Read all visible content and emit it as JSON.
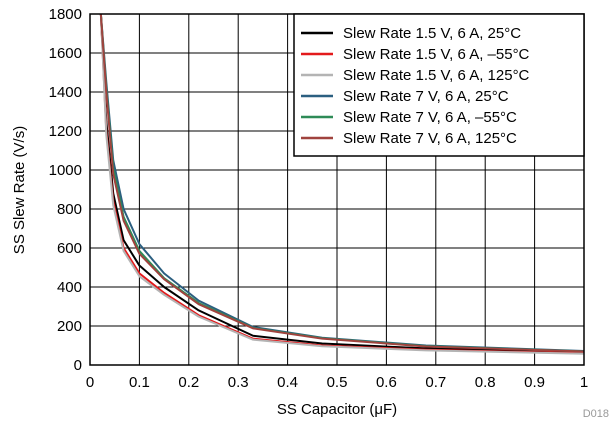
{
  "chart_data": {
    "type": "line",
    "xlabel": "SS Capacitor (μF)",
    "ylabel": "SS Slew Rate (V/s)",
    "xlim": [
      0,
      1
    ],
    "ylim": [
      0,
      1800
    ],
    "x_ticks": [
      "0",
      "0.1",
      "0.2",
      "0.3",
      "0.4",
      "0.5",
      "0.6",
      "0.7",
      "0.8",
      "0.9",
      "1"
    ],
    "y_ticks": [
      "0",
      "200",
      "400",
      "600",
      "800",
      "1000",
      "1200",
      "1400",
      "1600",
      "1800"
    ],
    "grid": true,
    "legend_position": "top-right",
    "footnote": "D018",
    "series": [
      {
        "name": "Slew Rate 1.5 V, 6 A, 25°C",
        "color": "#000000",
        "x": [
          0.022,
          0.033,
          0.047,
          0.068,
          0.1,
          0.15,
          0.22,
          0.33,
          0.47,
          0.68,
          1.0
        ],
        "y": [
          1800,
          1250,
          880,
          640,
          510,
          400,
          280,
          150,
          110,
          85,
          65
        ]
      },
      {
        "name": "Slew Rate 1.5 V, 6 A, –55°C",
        "color": "#e31a1c",
        "x": [
          0.022,
          0.033,
          0.047,
          0.068,
          0.1,
          0.15,
          0.22,
          0.33,
          0.47,
          0.68,
          1.0
        ],
        "y": [
          1800,
          1200,
          840,
          600,
          470,
          370,
          255,
          135,
          100,
          78,
          60
        ]
      },
      {
        "name": "Slew Rate 1.5 V, 6 A, 125°C",
        "color": "#b4b4b4",
        "x": [
          0.022,
          0.033,
          0.047,
          0.068,
          0.1,
          0.15,
          0.22,
          0.33,
          0.47,
          0.68,
          1.0
        ],
        "y": [
          1800,
          1180,
          820,
          585,
          455,
          360,
          248,
          130,
          96,
          75,
          58
        ]
      },
      {
        "name": "Slew Rate 7 V, 6 A, 25°C",
        "color": "#2b5f80",
        "x": [
          0.022,
          0.033,
          0.047,
          0.068,
          0.1,
          0.15,
          0.22,
          0.33,
          0.47,
          0.68,
          1.0
        ],
        "y": [
          1800,
          1450,
          1050,
          800,
          620,
          470,
          330,
          195,
          140,
          100,
          72
        ]
      },
      {
        "name": "Slew Rate 7 V, 6 A, –55°C",
        "color": "#2e8b57",
        "x": [
          0.022,
          0.033,
          0.047,
          0.068,
          0.1,
          0.15,
          0.22,
          0.33,
          0.47,
          0.68,
          1.0
        ],
        "y": [
          1800,
          1420,
          1010,
          760,
          585,
          445,
          318,
          190,
          137,
          97,
          70
        ]
      },
      {
        "name": "Slew Rate 7 V, 6 A, 125°C",
        "color": "#a0433e",
        "x": [
          0.022,
          0.033,
          0.047,
          0.068,
          0.1,
          0.15,
          0.22,
          0.33,
          0.47,
          0.68,
          1.0
        ],
        "y": [
          1800,
          1400,
          980,
          740,
          570,
          440,
          312,
          188,
          135,
          95,
          69
        ]
      }
    ]
  }
}
